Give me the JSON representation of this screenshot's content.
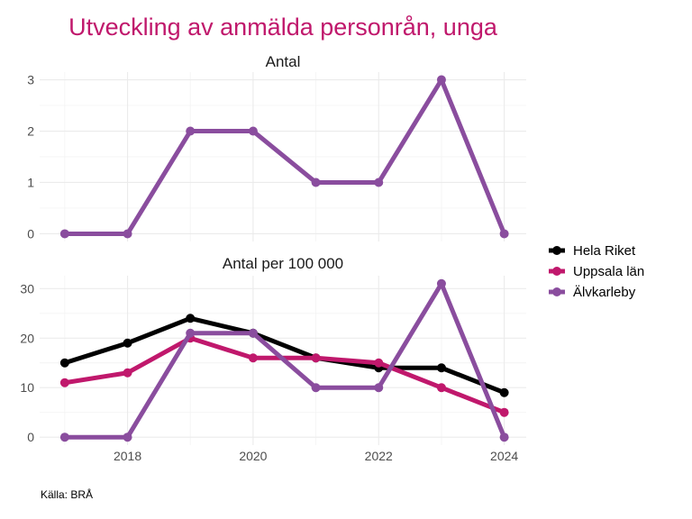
{
  "chart_data": {
    "type": "line",
    "title": "Utveckling av anmälda personrån, unga",
    "caption": "Källa: BRÅ",
    "title_color": "#c0186c",
    "x": [
      2017,
      2018,
      2019,
      2020,
      2021,
      2022,
      2023,
      2024
    ],
    "x_ticks": [
      "2018",
      "2020",
      "2022",
      "2024"
    ],
    "x_tick_values": [
      2018,
      2020,
      2022,
      2024
    ],
    "xlim": [
      2016.6,
      2024.35
    ],
    "grid": true,
    "legend": {
      "position": "right",
      "entries": [
        {
          "name": "Hela Riket",
          "color": "#000000"
        },
        {
          "name": "Uppsala län",
          "color": "#c0186c"
        },
        {
          "name": "Älvkarleby",
          "color": "#8a4d9e"
        }
      ]
    },
    "panels": [
      {
        "title": "Antal",
        "ylim": [
          -0.15,
          3.15
        ],
        "y_ticks": [
          "0",
          "1",
          "2",
          "3"
        ],
        "y_tick_values": [
          0,
          1,
          2,
          3
        ],
        "y_minor": [
          0.5,
          1.5,
          2.5
        ],
        "series": [
          {
            "name": "Älvkarleby",
            "color": "#8a4d9e",
            "values": [
              0,
              0,
              2,
              2,
              1,
              1,
              3,
              0
            ]
          }
        ]
      },
      {
        "title": "Antal per 100 000",
        "ylim": [
          -1.6,
          32.6
        ],
        "y_ticks": [
          "0",
          "10",
          "20",
          "30"
        ],
        "y_tick_values": [
          0,
          10,
          20,
          30
        ],
        "y_minor": [
          5,
          15,
          25
        ],
        "series": [
          {
            "name": "Hela Riket",
            "color": "#000000",
            "values": [
              15,
              19,
              24,
              21,
              16,
              14,
              14,
              9
            ]
          },
          {
            "name": "Uppsala län",
            "color": "#c0186c",
            "values": [
              11,
              13,
              20,
              16,
              16,
              15,
              10,
              5
            ]
          },
          {
            "name": "Älvkarleby",
            "color": "#8a4d9e",
            "values": [
              0,
              0,
              21,
              21,
              10,
              10,
              31,
              0
            ]
          }
        ]
      }
    ]
  }
}
